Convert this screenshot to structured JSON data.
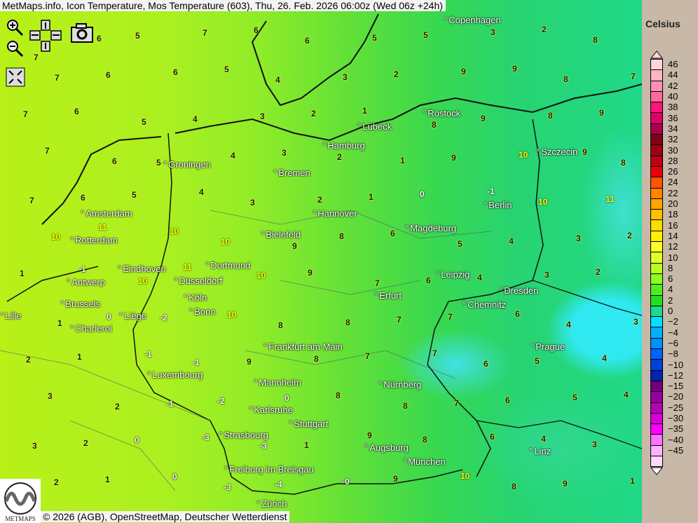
{
  "title": "MetMaps.info, Icon Temperature, Mos Temperature (603), Thu, 26. Feb. 2026 06:00z (Wed 06z +24h)",
  "controls": {
    "zoom_in": "zoom-in-icon",
    "zoom_out": "zoom-out-icon",
    "pan": "pan-arrows-icon",
    "screenshot": "camera-icon",
    "fullscreen": "fullscreen-icon"
  },
  "copyright": "© 2026 (AGB), OpenStreetMap, Deutscher Wetterdienst",
  "logo_text": "METMAPS",
  "legend": {
    "unit": "Celsius",
    "labels": [
      "46",
      "44",
      "42",
      "40",
      "38",
      "36",
      "34",
      "32",
      "30",
      "28",
      "26",
      "24",
      "22",
      "20",
      "18",
      "16",
      "14",
      "12",
      "10",
      "8",
      "6",
      "4",
      "2",
      "0",
      "−2",
      "−4",
      "−6",
      "−8",
      "−10",
      "−12",
      "−15",
      "−20",
      "−25",
      "−30",
      "−35",
      "−40",
      "−45"
    ],
    "colors": [
      "#ffd6dc",
      "#ffb4c4",
      "#ff92b4",
      "#ff6a9c",
      "#ff1478",
      "#e0006c",
      "#a8004c",
      "#800018",
      "#a00014",
      "#c00010",
      "#e80010",
      "#ff5400",
      "#ff8400",
      "#ffa400",
      "#ffc000",
      "#ffdc00",
      "#fff000",
      "#ffff28",
      "#e0ff28",
      "#b8ff20",
      "#88ff20",
      "#50ee20",
      "#20e020",
      "#20d890",
      "#00e0ff",
      "#00b0ff",
      "#0090ff",
      "#0064ff",
      "#0040d8",
      "#0024b0",
      "#700080",
      "#94009c",
      "#b400b8",
      "#d800d8",
      "#ff00ff",
      "#ff70ff",
      "#ffb0ff",
      "#ffd8ff"
    ]
  },
  "cities": [
    "Copenhagen",
    "Rostock",
    "Lübeck",
    "Hamburg",
    "Szczecin",
    "Groningen",
    "Bremen",
    "Amsterdam",
    "Hannover",
    "Berlin",
    "Rotterdam",
    "Bielefeld",
    "Magdeburg",
    "Eindhoven",
    "Dortmund",
    "Düsseldorf",
    "Antwerp",
    "Leipzig",
    "Dresden",
    "Köln",
    "Bonn",
    "Brussels",
    "Liège",
    "Erfurt",
    "Chemnitz",
    "Lille",
    "Charleroi",
    "Prague",
    "Frankfurt am Main",
    "Luxembourg",
    "Mannheim",
    "Nürnberg",
    "Karlsruhe",
    "Stuttgart",
    "Strasbourg",
    "Augsburg",
    "Linz",
    "München",
    "Freiburg im Breisgau",
    "Zürich"
  ],
  "temperatures": [
    "7",
    "6",
    "5",
    "7",
    "6",
    "6",
    "5",
    "5",
    "3",
    "2",
    "8",
    "7",
    "6",
    "6",
    "5",
    "4",
    "3",
    "2",
    "9",
    "9",
    "8",
    "7",
    "7",
    "6",
    "5",
    "4",
    "3",
    "2",
    "1",
    "8",
    "9",
    "8",
    "9",
    "7",
    "6",
    "5",
    "4",
    "3",
    "2",
    "1",
    "9",
    "10",
    "9",
    "8",
    "7",
    "6",
    "5",
    "4",
    "3",
    "2",
    "1",
    "0",
    "-1",
    "10",
    "11",
    "10",
    "11",
    "10",
    "10",
    "9",
    "8",
    "6",
    "5",
    "4",
    "3",
    "2",
    "1",
    "-1",
    "10",
    "11",
    "10",
    "9",
    "7",
    "6",
    "4",
    "3",
    "2",
    "1",
    "0",
    "-2",
    "10",
    "8",
    "8",
    "7",
    "7",
    "6",
    "4",
    "3",
    "2",
    "1",
    "-1",
    "-1",
    "9",
    "8",
    "7",
    "7",
    "6",
    "5",
    "4",
    "3",
    "2",
    "-1",
    "-2",
    "0",
    "8",
    "8",
    "7",
    "6",
    "5",
    "4",
    "3",
    "2",
    "0",
    "-3",
    "-3",
    "1",
    "9",
    "8",
    "6",
    "4",
    "3",
    "2",
    "1",
    "0",
    "-3",
    "-4",
    "-0",
    "9",
    "10",
    "8",
    "9",
    "1",
    "-1",
    "-0",
    "-3",
    "-3",
    "-1"
  ]
}
